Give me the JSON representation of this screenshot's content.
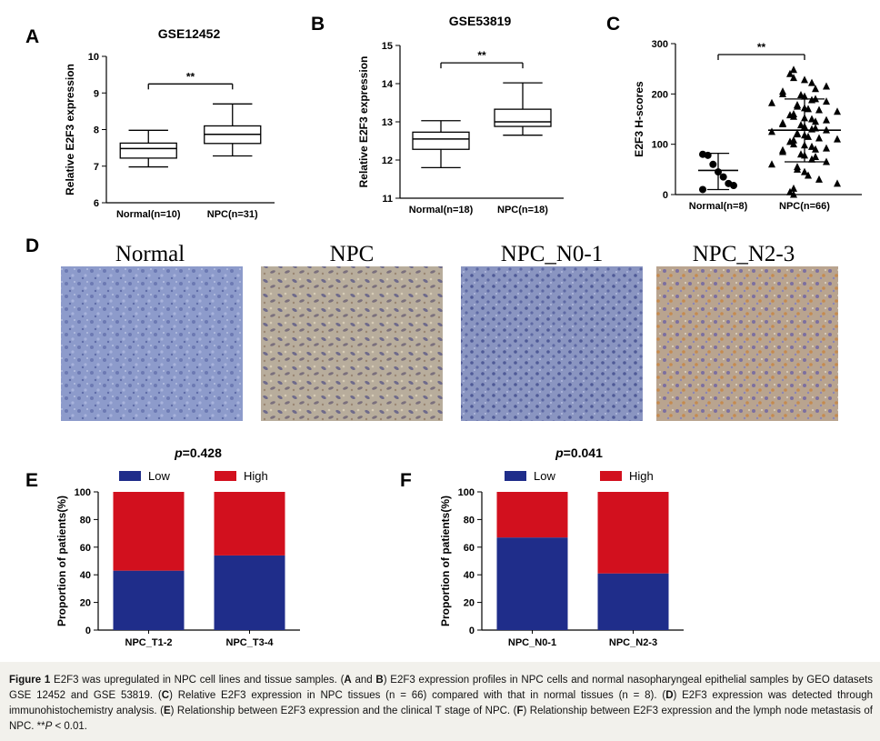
{
  "panels": {
    "A": {
      "letter": "A"
    },
    "B": {
      "letter": "B"
    },
    "C": {
      "letter": "C"
    },
    "D": {
      "letter": "D"
    },
    "E": {
      "letter": "E"
    },
    "F": {
      "letter": "F"
    }
  },
  "micrographs": {
    "normal": {
      "label": "Normal",
      "color": "#8a98c8"
    },
    "npc": {
      "label": "NPC",
      "color": "#b5aa9b"
    },
    "n01": {
      "label": "NPC_N0-1",
      "color": "#8893bd"
    },
    "n23": {
      "label": "NPC_N2-3",
      "color": "#b2a08f"
    }
  },
  "caption": {
    "fig_label": "Figure 1",
    "parts": [
      {
        "t": " E2F3 was upregulated in NPC cell lines and tissue samples. (",
        "b": false
      },
      {
        "t": "A",
        "b": true
      },
      {
        "t": " and ",
        "b": false
      },
      {
        "t": "B",
        "b": true
      },
      {
        "t": ") E2F3 expression profiles in NPC cells and normal nasopharyngeal epithelial samples by GEO datasets GSE 12452 and GSE 53819. (",
        "b": false
      },
      {
        "t": "C",
        "b": true
      },
      {
        "t": ") Relative E2F3 expression in NPC tissues (n = 66) compared with that in normal tissues (n = 8). (",
        "b": false
      },
      {
        "t": "D",
        "b": true
      },
      {
        "t": ") E2F3 expression was detected through immunohistochemistry analysis. (",
        "b": false
      },
      {
        "t": "E",
        "b": true
      },
      {
        "t": ") Relationship between E2F3 expression and the clinical T stage of NPC. (",
        "b": false
      },
      {
        "t": "F",
        "b": true
      },
      {
        "t": ") Relationship between E2F3 expression and the lymph node metastasis of NPC. **",
        "b": false
      },
      {
        "t": "P",
        "b": false,
        "i": true
      },
      {
        "t": " < 0.01.",
        "b": false
      }
    ]
  },
  "chart_data": [
    {
      "panel": "A",
      "type": "box",
      "title": "GSE12452",
      "ylabel": "Relative E2F3 expression",
      "ylim": [
        6,
        10
      ],
      "yticks": [
        6,
        7,
        8,
        9,
        10
      ],
      "significance": "**",
      "categories": [
        "Normal(n=10)",
        "NPC(n=31)"
      ],
      "boxes": [
        {
          "min": 6.98,
          "q1": 7.22,
          "median": 7.48,
          "q3": 7.63,
          "max": 7.98
        },
        {
          "min": 7.28,
          "q1": 7.62,
          "median": 7.87,
          "q3": 8.1,
          "max": 8.7
        }
      ]
    },
    {
      "panel": "B",
      "type": "box",
      "title": "GSE53819",
      "ylabel": "Relative E2F3 expression",
      "ylim": [
        11,
        15
      ],
      "yticks": [
        11,
        12,
        13,
        14,
        15
      ],
      "significance": "**",
      "categories": [
        "Normal(n=18)",
        "NPC(n=18)"
      ],
      "boxes": [
        {
          "min": 11.8,
          "q1": 12.28,
          "median": 12.55,
          "q3": 12.73,
          "max": 13.03
        },
        {
          "min": 12.65,
          "q1": 12.88,
          "median": 13.0,
          "q3": 13.33,
          "max": 14.02
        }
      ]
    },
    {
      "panel": "C",
      "type": "scatter",
      "ylabel": "E2F3 H-scores",
      "ylim": [
        0,
        300
      ],
      "yticks": [
        0,
        100,
        200,
        300
      ],
      "significance": "**",
      "categories": [
        "Normal(n=8)",
        "NPC(n=66)"
      ],
      "groups": [
        {
          "marker": "circle",
          "mean": 48,
          "sd_low": 10,
          "sd_high": 82,
          "values": [
            80,
            78,
            60,
            45,
            35,
            22,
            18,
            10
          ]
        },
        {
          "marker": "triangle",
          "mean": 128,
          "sd_low": 65,
          "sd_high": 190,
          "values": [
            248,
            240,
            232,
            228,
            222,
            215,
            210,
            205,
            200,
            198,
            195,
            190,
            188,
            185,
            182,
            178,
            175,
            172,
            170,
            168,
            165,
            160,
            158,
            155,
            152,
            150,
            148,
            145,
            142,
            140,
            138,
            135,
            132,
            130,
            128,
            125,
            122,
            120,
            118,
            115,
            112,
            110,
            108,
            105,
            100,
            98,
            95,
            92,
            90,
            88,
            85,
            80,
            78,
            75,
            70,
            65,
            60,
            55,
            50,
            45,
            38,
            30,
            22,
            12,
            5,
            0
          ]
        }
      ]
    },
    {
      "panel": "E",
      "type": "bar",
      "stacked": true,
      "title_italic": "p",
      "title_rest": "=0.428",
      "ylabel": "Proportion of patients(%)",
      "ylim": [
        0,
        100
      ],
      "yticks": [
        0,
        20,
        40,
        60,
        80,
        100
      ],
      "legend": "top",
      "categories": [
        "NPC_T1-2",
        "NPC_T3-4"
      ],
      "series": [
        {
          "name": "Low",
          "color": "#1f2d8a",
          "values": [
            43,
            54
          ]
        },
        {
          "name": "High",
          "color": "#d2101e",
          "values": [
            57,
            46
          ]
        }
      ]
    },
    {
      "panel": "F",
      "type": "bar",
      "stacked": true,
      "title_italic": "p",
      "title_rest": "=0.041",
      "ylabel": "Proportion of patients(%)",
      "ylim": [
        0,
        100
      ],
      "yticks": [
        0,
        20,
        40,
        60,
        80,
        100
      ],
      "legend": "top",
      "categories": [
        "NPC_N0-1",
        "NPC_N2-3"
      ],
      "series": [
        {
          "name": "Low",
          "color": "#1f2d8a",
          "values": [
            67,
            41
          ]
        },
        {
          "name": "High",
          "color": "#d2101e",
          "values": [
            33,
            59
          ]
        }
      ]
    }
  ]
}
